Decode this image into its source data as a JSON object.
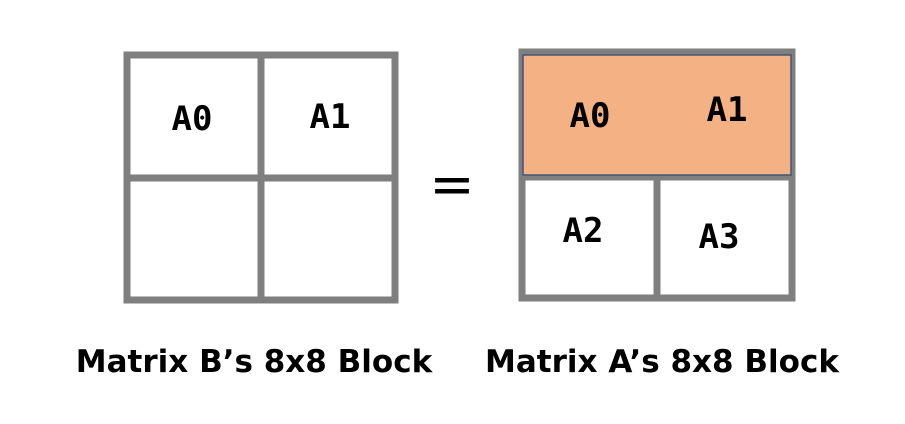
{
  "matrix_b": {
    "cells": [
      "A0",
      "A1",
      "",
      ""
    ],
    "caption": "Matrix B’s 8x8 Block"
  },
  "equals_sign": "=",
  "matrix_a": {
    "top_row_labels": [
      "A0",
      "A1"
    ],
    "bottom_row_labels": [
      "A2",
      "A3"
    ],
    "caption": "Matrix A’s 8x8 Block",
    "highlight_color": "#f4b183",
    "highlight_border_color": "#41557a"
  },
  "colors": {
    "grid": "#7f7f7f",
    "text": "#000000",
    "background": "#ffffff"
  }
}
